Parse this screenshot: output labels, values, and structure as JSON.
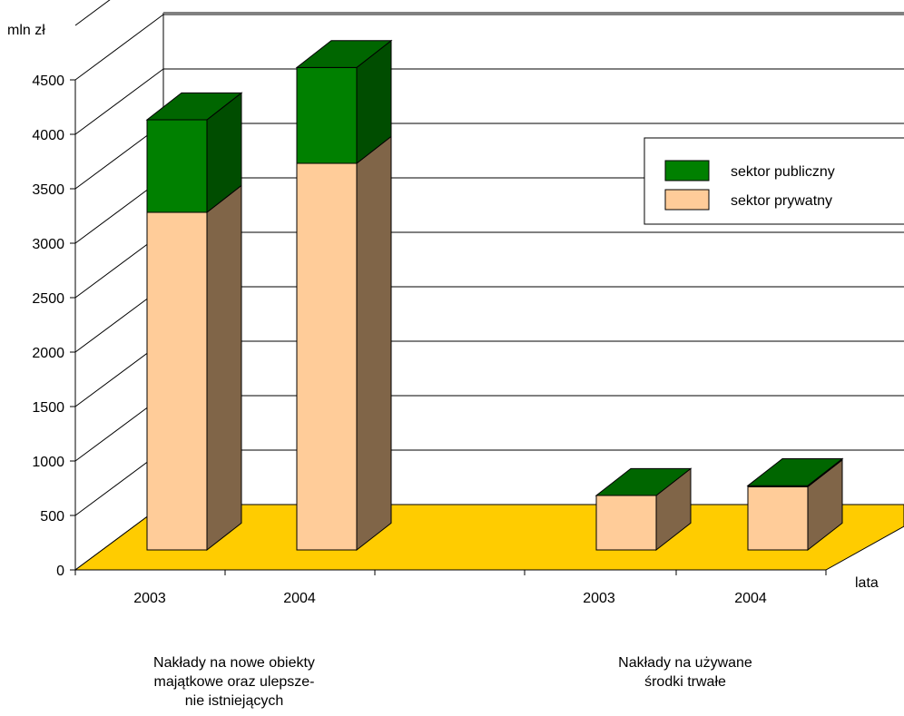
{
  "chart_data": {
    "type": "bar",
    "stacked": true,
    "three_d": true,
    "ylabel": "mln zł",
    "xlabel": "lata",
    "ylim": [
      0,
      4500
    ],
    "yticks": [
      "0",
      "500",
      "1000",
      "1500",
      "2000",
      "2500",
      "3000",
      "3500",
      "4000",
      "4500"
    ],
    "grid": true,
    "legend_position": "right",
    "groups": [
      {
        "label": "Nakłady na nowe obiekty majątkowe oraz ulepsze-nie istniejących",
        "label_lines": [
          "Nakłady na nowe obiekty",
          "majątkowe oraz ulepsze-",
          "nie istniejących"
        ],
        "categories": [
          "2003",
          "2004"
        ]
      },
      {
        "label": "Nakłady na używane środki trwałe",
        "label_lines": [
          "Nakłady na używane",
          "środki trwałe"
        ],
        "categories": [
          "2003",
          "2004"
        ]
      }
    ],
    "series": [
      {
        "name": "sektor publiczny",
        "values": [
          850,
          880,
          0,
          10
        ],
        "color": "#008000",
        "top_color": "#006600",
        "side_color": "#004d00"
      },
      {
        "name": "sektor prywatny",
        "values": [
          3100,
          3550,
          500,
          580
        ],
        "color": "#ffcc99",
        "top_color": "#ffcc99",
        "side_color": "#806548"
      }
    ],
    "floor_color": "#ffcc00"
  }
}
